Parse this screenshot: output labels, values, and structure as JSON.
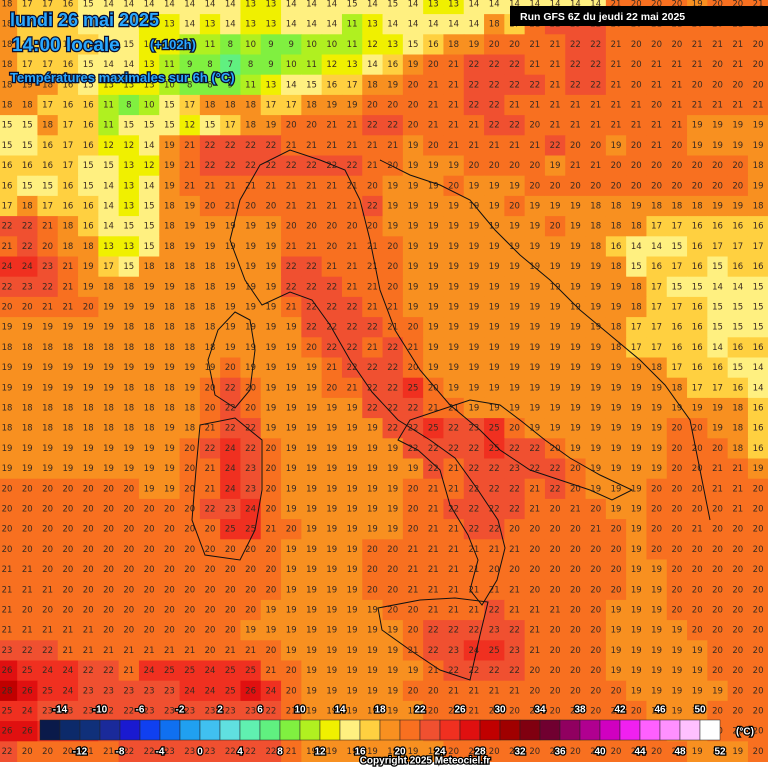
{
  "header": {
    "date": "lundi 26 mai 2025",
    "time": "14:00 locale",
    "lead": "(+102h)",
    "field": "Températures maximales sur 6h (°C)",
    "run": "Run GFS 6Z du jeudi 22 mai 2025"
  },
  "grid": {
    "values": [
      [
        18,
        17,
        17,
        16,
        15,
        14,
        14,
        14,
        14,
        14,
        14,
        14,
        13,
        13,
        14,
        14,
        14,
        15,
        14,
        15,
        14,
        13,
        13,
        14,
        14,
        14,
        14,
        14,
        14,
        14,
        21,
        20,
        20,
        20,
        19,
        20,
        20,
        21
      ],
      [
        18,
        17,
        17,
        16,
        15,
        14,
        14,
        13,
        13,
        14,
        13,
        14,
        13,
        13,
        14,
        14,
        14,
        11,
        13,
        14,
        14,
        14,
        14,
        14,
        18,
        17,
        21,
        22,
        23,
        22,
        20,
        20,
        21,
        21,
        20,
        20,
        21,
        20
      ],
      [
        18,
        17,
        17,
        16,
        16,
        15,
        15,
        13,
        12,
        11,
        11,
        8,
        10,
        9,
        9,
        10,
        10,
        11,
        12,
        13,
        15,
        16,
        18,
        19,
        20,
        20,
        21,
        21,
        22,
        22,
        21,
        20,
        20,
        20,
        21,
        21,
        21,
        20
      ],
      [
        18,
        17,
        17,
        16,
        15,
        14,
        14,
        13,
        11,
        9,
        8,
        7,
        8,
        9,
        10,
        11,
        12,
        13,
        14,
        16,
        19,
        20,
        21,
        22,
        22,
        22,
        21,
        21,
        22,
        22,
        21,
        20,
        21,
        21,
        21,
        20,
        21,
        20
      ],
      [
        18,
        19,
        18,
        16,
        15,
        13,
        13,
        13,
        10,
        8,
        8,
        9,
        11,
        13,
        14,
        15,
        16,
        17,
        18,
        19,
        20,
        21,
        21,
        22,
        22,
        22,
        22,
        21,
        22,
        22,
        21,
        20,
        21,
        21,
        20,
        20,
        20,
        20
      ],
      [
        18,
        18,
        17,
        16,
        16,
        11,
        8,
        10,
        15,
        17,
        18,
        18,
        18,
        17,
        17,
        18,
        19,
        19,
        20,
        20,
        20,
        21,
        21,
        22,
        22,
        21,
        21,
        21,
        21,
        21,
        21,
        21,
        20,
        21,
        21,
        21,
        21,
        21
      ],
      [
        15,
        15,
        18,
        17,
        16,
        11,
        15,
        15,
        15,
        12,
        15,
        17,
        18,
        19,
        20,
        20,
        21,
        21,
        22,
        22,
        20,
        21,
        21,
        21,
        22,
        22,
        20,
        21,
        21,
        21,
        21,
        21,
        21,
        21,
        19,
        19,
        19,
        19
      ],
      [
        15,
        15,
        16,
        17,
        16,
        12,
        12,
        14,
        19,
        21,
        22,
        22,
        22,
        22,
        21,
        21,
        21,
        21,
        21,
        21,
        19,
        20,
        21,
        21,
        21,
        21,
        21,
        22,
        20,
        20,
        19,
        20,
        21,
        20,
        19,
        19,
        19,
        19
      ],
      [
        16,
        16,
        16,
        17,
        15,
        15,
        13,
        12,
        19,
        21,
        22,
        22,
        22,
        22,
        22,
        22,
        22,
        22,
        21,
        20,
        19,
        19,
        19,
        20,
        20,
        20,
        20,
        19,
        21,
        21,
        20,
        20,
        20,
        20,
        20,
        20,
        20,
        18
      ],
      [
        16,
        15,
        15,
        16,
        15,
        14,
        13,
        14,
        19,
        21,
        21,
        21,
        21,
        21,
        21,
        21,
        21,
        21,
        20,
        19,
        19,
        19,
        20,
        19,
        19,
        19,
        20,
        20,
        20,
        20,
        20,
        20,
        20,
        20,
        20,
        20,
        20,
        19
      ],
      [
        17,
        18,
        17,
        16,
        16,
        14,
        13,
        15,
        18,
        19,
        20,
        21,
        20,
        20,
        21,
        21,
        21,
        21,
        22,
        19,
        19,
        19,
        19,
        19,
        19,
        20,
        19,
        19,
        19,
        18,
        18,
        19,
        18,
        18,
        18,
        19,
        19,
        18
      ],
      [
        22,
        22,
        21,
        18,
        16,
        14,
        15,
        15,
        18,
        19,
        19,
        19,
        19,
        19,
        20,
        20,
        20,
        20,
        20,
        19,
        19,
        19,
        19,
        19,
        19,
        19,
        19,
        20,
        19,
        18,
        18,
        18,
        17,
        17,
        16,
        16,
        16,
        16
      ],
      [
        21,
        22,
        20,
        18,
        18,
        13,
        13,
        15,
        18,
        19,
        19,
        19,
        19,
        19,
        21,
        21,
        20,
        21,
        21,
        20,
        19,
        19,
        19,
        19,
        19,
        19,
        19,
        19,
        19,
        18,
        16,
        14,
        14,
        15,
        16,
        17,
        17,
        17
      ],
      [
        24,
        24,
        23,
        21,
        19,
        17,
        15,
        18,
        18,
        18,
        18,
        19,
        19,
        19,
        22,
        22,
        21,
        21,
        21,
        20,
        19,
        19,
        19,
        19,
        19,
        19,
        19,
        19,
        19,
        19,
        18,
        15,
        16,
        17,
        16,
        15,
        16,
        16
      ],
      [
        22,
        23,
        22,
        21,
        19,
        18,
        18,
        19,
        19,
        18,
        18,
        19,
        19,
        19,
        22,
        22,
        22,
        21,
        21,
        20,
        19,
        19,
        19,
        19,
        19,
        19,
        19,
        19,
        19,
        19,
        19,
        18,
        17,
        15,
        15,
        14,
        14,
        15
      ],
      [
        20,
        20,
        21,
        21,
        20,
        19,
        19,
        19,
        18,
        18,
        18,
        19,
        19,
        19,
        21,
        22,
        22,
        22,
        21,
        21,
        19,
        19,
        19,
        19,
        19,
        19,
        19,
        19,
        19,
        19,
        19,
        18,
        17,
        17,
        16,
        15,
        15,
        15
      ],
      [
        19,
        19,
        19,
        19,
        19,
        19,
        18,
        18,
        18,
        18,
        18,
        19,
        19,
        19,
        19,
        22,
        22,
        22,
        22,
        21,
        20,
        19,
        19,
        19,
        19,
        19,
        19,
        19,
        19,
        19,
        18,
        17,
        17,
        16,
        16,
        15,
        15,
        15
      ],
      [
        18,
        18,
        18,
        18,
        18,
        18,
        18,
        18,
        18,
        18,
        18,
        19,
        19,
        19,
        19,
        20,
        22,
        22,
        21,
        22,
        21,
        19,
        19,
        19,
        19,
        19,
        19,
        19,
        19,
        19,
        18,
        17,
        17,
        16,
        16,
        14,
        16,
        16
      ],
      [
        19,
        19,
        19,
        19,
        19,
        19,
        19,
        19,
        19,
        19,
        19,
        20,
        19,
        19,
        19,
        19,
        21,
        22,
        22,
        22,
        20,
        19,
        19,
        19,
        19,
        19,
        19,
        19,
        19,
        19,
        19,
        19,
        18,
        17,
        16,
        16,
        15,
        14
      ],
      [
        19,
        19,
        19,
        19,
        19,
        19,
        18,
        18,
        18,
        19,
        20,
        22,
        20,
        19,
        19,
        19,
        20,
        21,
        22,
        22,
        25,
        20,
        19,
        19,
        19,
        19,
        19,
        19,
        19,
        19,
        19,
        19,
        19,
        18,
        17,
        17,
        16,
        14
      ],
      [
        18,
        18,
        18,
        18,
        18,
        18,
        18,
        18,
        18,
        18,
        20,
        22,
        20,
        19,
        19,
        19,
        19,
        19,
        22,
        22,
        22,
        21,
        21,
        19,
        19,
        19,
        19,
        19,
        19,
        19,
        19,
        19,
        19,
        19,
        19,
        19,
        18,
        16
      ],
      [
        18,
        18,
        18,
        18,
        18,
        18,
        18,
        18,
        19,
        18,
        21,
        22,
        22,
        19,
        19,
        19,
        19,
        19,
        19,
        22,
        22,
        25,
        22,
        23,
        25,
        20,
        19,
        19,
        19,
        19,
        19,
        19,
        19,
        20,
        20,
        19,
        18,
        16
      ],
      [
        19,
        19,
        19,
        19,
        19,
        19,
        19,
        19,
        19,
        20,
        22,
        24,
        22,
        20,
        19,
        19,
        19,
        19,
        19,
        19,
        22,
        22,
        22,
        22,
        25,
        22,
        22,
        20,
        19,
        19,
        19,
        19,
        19,
        20,
        20,
        20,
        18,
        16
      ],
      [
        19,
        19,
        19,
        19,
        19,
        19,
        19,
        19,
        19,
        20,
        21,
        24,
        23,
        20,
        19,
        19,
        19,
        19,
        19,
        19,
        19,
        22,
        21,
        22,
        22,
        23,
        22,
        22,
        20,
        19,
        19,
        19,
        19,
        20,
        20,
        21,
        21,
        19
      ],
      [
        20,
        20,
        20,
        20,
        20,
        20,
        20,
        19,
        19,
        20,
        21,
        24,
        23,
        20,
        19,
        19,
        19,
        19,
        19,
        19,
        20,
        21,
        21,
        22,
        22,
        22,
        21,
        22,
        20,
        19,
        19,
        19,
        20,
        20,
        20,
        21,
        21,
        20
      ],
      [
        20,
        20,
        20,
        20,
        20,
        20,
        20,
        20,
        20,
        20,
        22,
        23,
        24,
        20,
        19,
        19,
        19,
        19,
        19,
        19,
        20,
        21,
        22,
        22,
        22,
        22,
        21,
        20,
        21,
        20,
        19,
        19,
        20,
        20,
        20,
        20,
        21,
        20
      ],
      [
        20,
        20,
        20,
        20,
        20,
        20,
        20,
        20,
        20,
        20,
        20,
        25,
        25,
        21,
        20,
        19,
        19,
        19,
        19,
        19,
        20,
        21,
        21,
        22,
        22,
        20,
        20,
        20,
        20,
        21,
        20,
        19,
        20,
        20,
        21,
        20,
        20,
        20
      ],
      [
        20,
        20,
        20,
        20,
        20,
        20,
        20,
        20,
        20,
        20,
        20,
        20,
        20,
        20,
        19,
        19,
        19,
        19,
        20,
        20,
        21,
        21,
        21,
        21,
        21,
        21,
        20,
        20,
        20,
        20,
        20,
        19,
        20,
        20,
        20,
        20,
        20,
        20
      ],
      [
        21,
        21,
        20,
        20,
        20,
        20,
        20,
        20,
        20,
        20,
        20,
        20,
        20,
        20,
        19,
        19,
        19,
        19,
        20,
        20,
        21,
        21,
        21,
        21,
        20,
        20,
        20,
        20,
        20,
        20,
        20,
        19,
        19,
        20,
        20,
        20,
        20,
        20
      ],
      [
        21,
        21,
        21,
        20,
        20,
        20,
        20,
        20,
        20,
        20,
        20,
        20,
        20,
        20,
        19,
        19,
        19,
        19,
        20,
        20,
        21,
        21,
        21,
        21,
        21,
        21,
        20,
        20,
        20,
        20,
        20,
        19,
        19,
        20,
        20,
        20,
        20,
        20
      ],
      [
        21,
        20,
        20,
        20,
        20,
        20,
        20,
        20,
        20,
        20,
        20,
        20,
        20,
        19,
        19,
        19,
        19,
        19,
        19,
        20,
        20,
        21,
        21,
        21,
        22,
        21,
        21,
        21,
        20,
        20,
        19,
        19,
        19,
        20,
        20,
        20,
        20,
        20
      ],
      [
        21,
        21,
        21,
        21,
        21,
        20,
        20,
        20,
        20,
        20,
        20,
        20,
        19,
        19,
        19,
        19,
        19,
        19,
        19,
        19,
        20,
        22,
        22,
        22,
        23,
        22,
        21,
        20,
        20,
        20,
        19,
        19,
        19,
        19,
        20,
        20,
        20,
        20
      ],
      [
        23,
        22,
        22,
        21,
        21,
        21,
        21,
        21,
        21,
        21,
        20,
        21,
        21,
        20,
        19,
        19,
        19,
        19,
        19,
        19,
        21,
        22,
        23,
        24,
        25,
        23,
        21,
        20,
        20,
        20,
        19,
        19,
        19,
        19,
        19,
        20,
        20,
        20
      ],
      [
        26,
        25,
        24,
        24,
        22,
        22,
        21,
        24,
        25,
        25,
        24,
        25,
        25,
        21,
        20,
        19,
        19,
        19,
        19,
        19,
        19,
        21,
        22,
        22,
        22,
        22,
        20,
        20,
        20,
        20,
        19,
        19,
        19,
        19,
        19,
        20,
        20,
        20
      ],
      [
        28,
        26,
        25,
        24,
        23,
        23,
        23,
        23,
        23,
        24,
        24,
        25,
        26,
        24,
        20,
        19,
        19,
        19,
        19,
        19,
        20,
        20,
        21,
        21,
        21,
        21,
        20,
        20,
        20,
        20,
        20,
        19,
        19,
        19,
        19,
        19,
        20,
        20
      ],
      [
        25,
        24,
        23,
        23,
        23,
        22,
        22,
        23,
        23,
        23,
        23,
        23,
        23,
        22,
        21,
        19,
        19,
        19,
        19,
        19,
        19,
        20,
        20,
        21,
        21,
        20,
        20,
        20,
        20,
        20,
        20,
        20,
        19,
        19,
        19,
        20,
        20,
        20
      ],
      [
        26,
        26,
        25,
        24,
        24,
        22,
        22,
        22,
        23,
        23,
        23,
        23,
        23,
        22,
        21,
        19,
        19,
        19,
        19,
        19,
        19,
        20,
        20,
        20,
        20,
        20,
        20,
        20,
        20,
        20,
        20,
        20,
        20,
        19,
        19,
        20,
        20,
        20
      ],
      [
        22,
        20,
        20,
        20,
        21,
        21,
        22,
        22,
        23,
        23,
        23,
        22,
        22,
        22,
        21,
        19,
        19,
        19,
        19,
        19,
        19,
        19,
        20,
        20,
        20,
        20,
        20,
        20,
        20,
        20,
        20,
        20,
        20,
        20,
        19,
        19,
        19,
        20
      ]
    ]
  },
  "legend": {
    "unit": "(°C)",
    "ticks": [
      -14,
      -12,
      -10,
      -8,
      -6,
      -4,
      -2,
      0,
      2,
      4,
      6,
      8,
      10,
      12,
      14,
      16,
      18,
      20,
      22,
      24,
      26,
      28,
      30,
      32,
      34,
      36,
      38,
      40,
      42,
      44,
      46,
      48,
      50,
      52
    ],
    "colors": [
      "#0a1a4a",
      "#0c2a6a",
      "#10307a",
      "#1a2a9a",
      "#1a1ad0",
      "#1040f0",
      "#1070f0",
      "#20a0f0",
      "#40c0f0",
      "#60e0e0",
      "#60f0b0",
      "#60f080",
      "#80f040",
      "#b0f020",
      "#f0f000",
      "#fff080",
      "#ffd040",
      "#f89020",
      "#f87020",
      "#f05030",
      "#f03020",
      "#e01010",
      "#c00000",
      "#a00000",
      "#800010",
      "#700030",
      "#900060",
      "#b00090",
      "#d000c0",
      "#f020f0",
      "#ff60ff",
      "#ff90ff",
      "#ffc0ff",
      "#ffffff"
    ]
  },
  "footer": {
    "copyright": "Copyright 2025 Meteociel.fr"
  }
}
